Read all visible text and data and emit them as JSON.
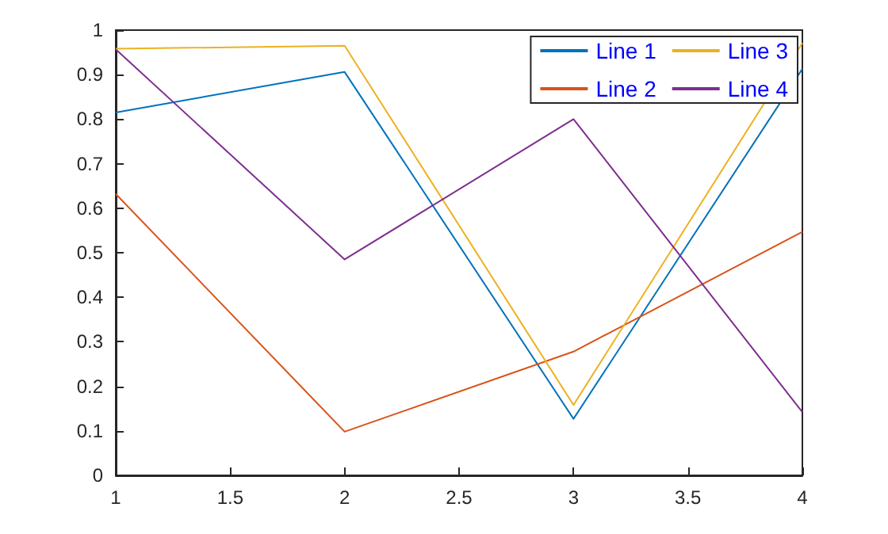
{
  "chart_data": {
    "type": "line",
    "x": [
      1,
      2,
      3,
      4
    ],
    "series": [
      {
        "name": "Line 1",
        "color": "#0072bd",
        "values": [
          0.815,
          0.906,
          0.127,
          0.913
        ]
      },
      {
        "name": "Line 2",
        "color": "#d95319",
        "values": [
          0.632,
          0.098,
          0.278,
          0.547
        ]
      },
      {
        "name": "Line 3",
        "color": "#edb120",
        "values": [
          0.958,
          0.965,
          0.158,
          0.971
        ]
      },
      {
        "name": "Line 4",
        "color": "#7e2f8e",
        "values": [
          0.957,
          0.485,
          0.8,
          0.142
        ]
      }
    ],
    "xlim": [
      1,
      4
    ],
    "xticks": [
      1,
      1.5,
      2,
      2.5,
      3,
      3.5,
      4
    ],
    "ylim": [
      0,
      1
    ],
    "yticks": [
      0,
      0.1,
      0.2,
      0.3,
      0.4,
      0.5,
      0.6,
      0.7,
      0.8,
      0.9,
      1
    ],
    "grid": false,
    "legend": "top right",
    "marker": "none",
    "line_style": "solid"
  }
}
